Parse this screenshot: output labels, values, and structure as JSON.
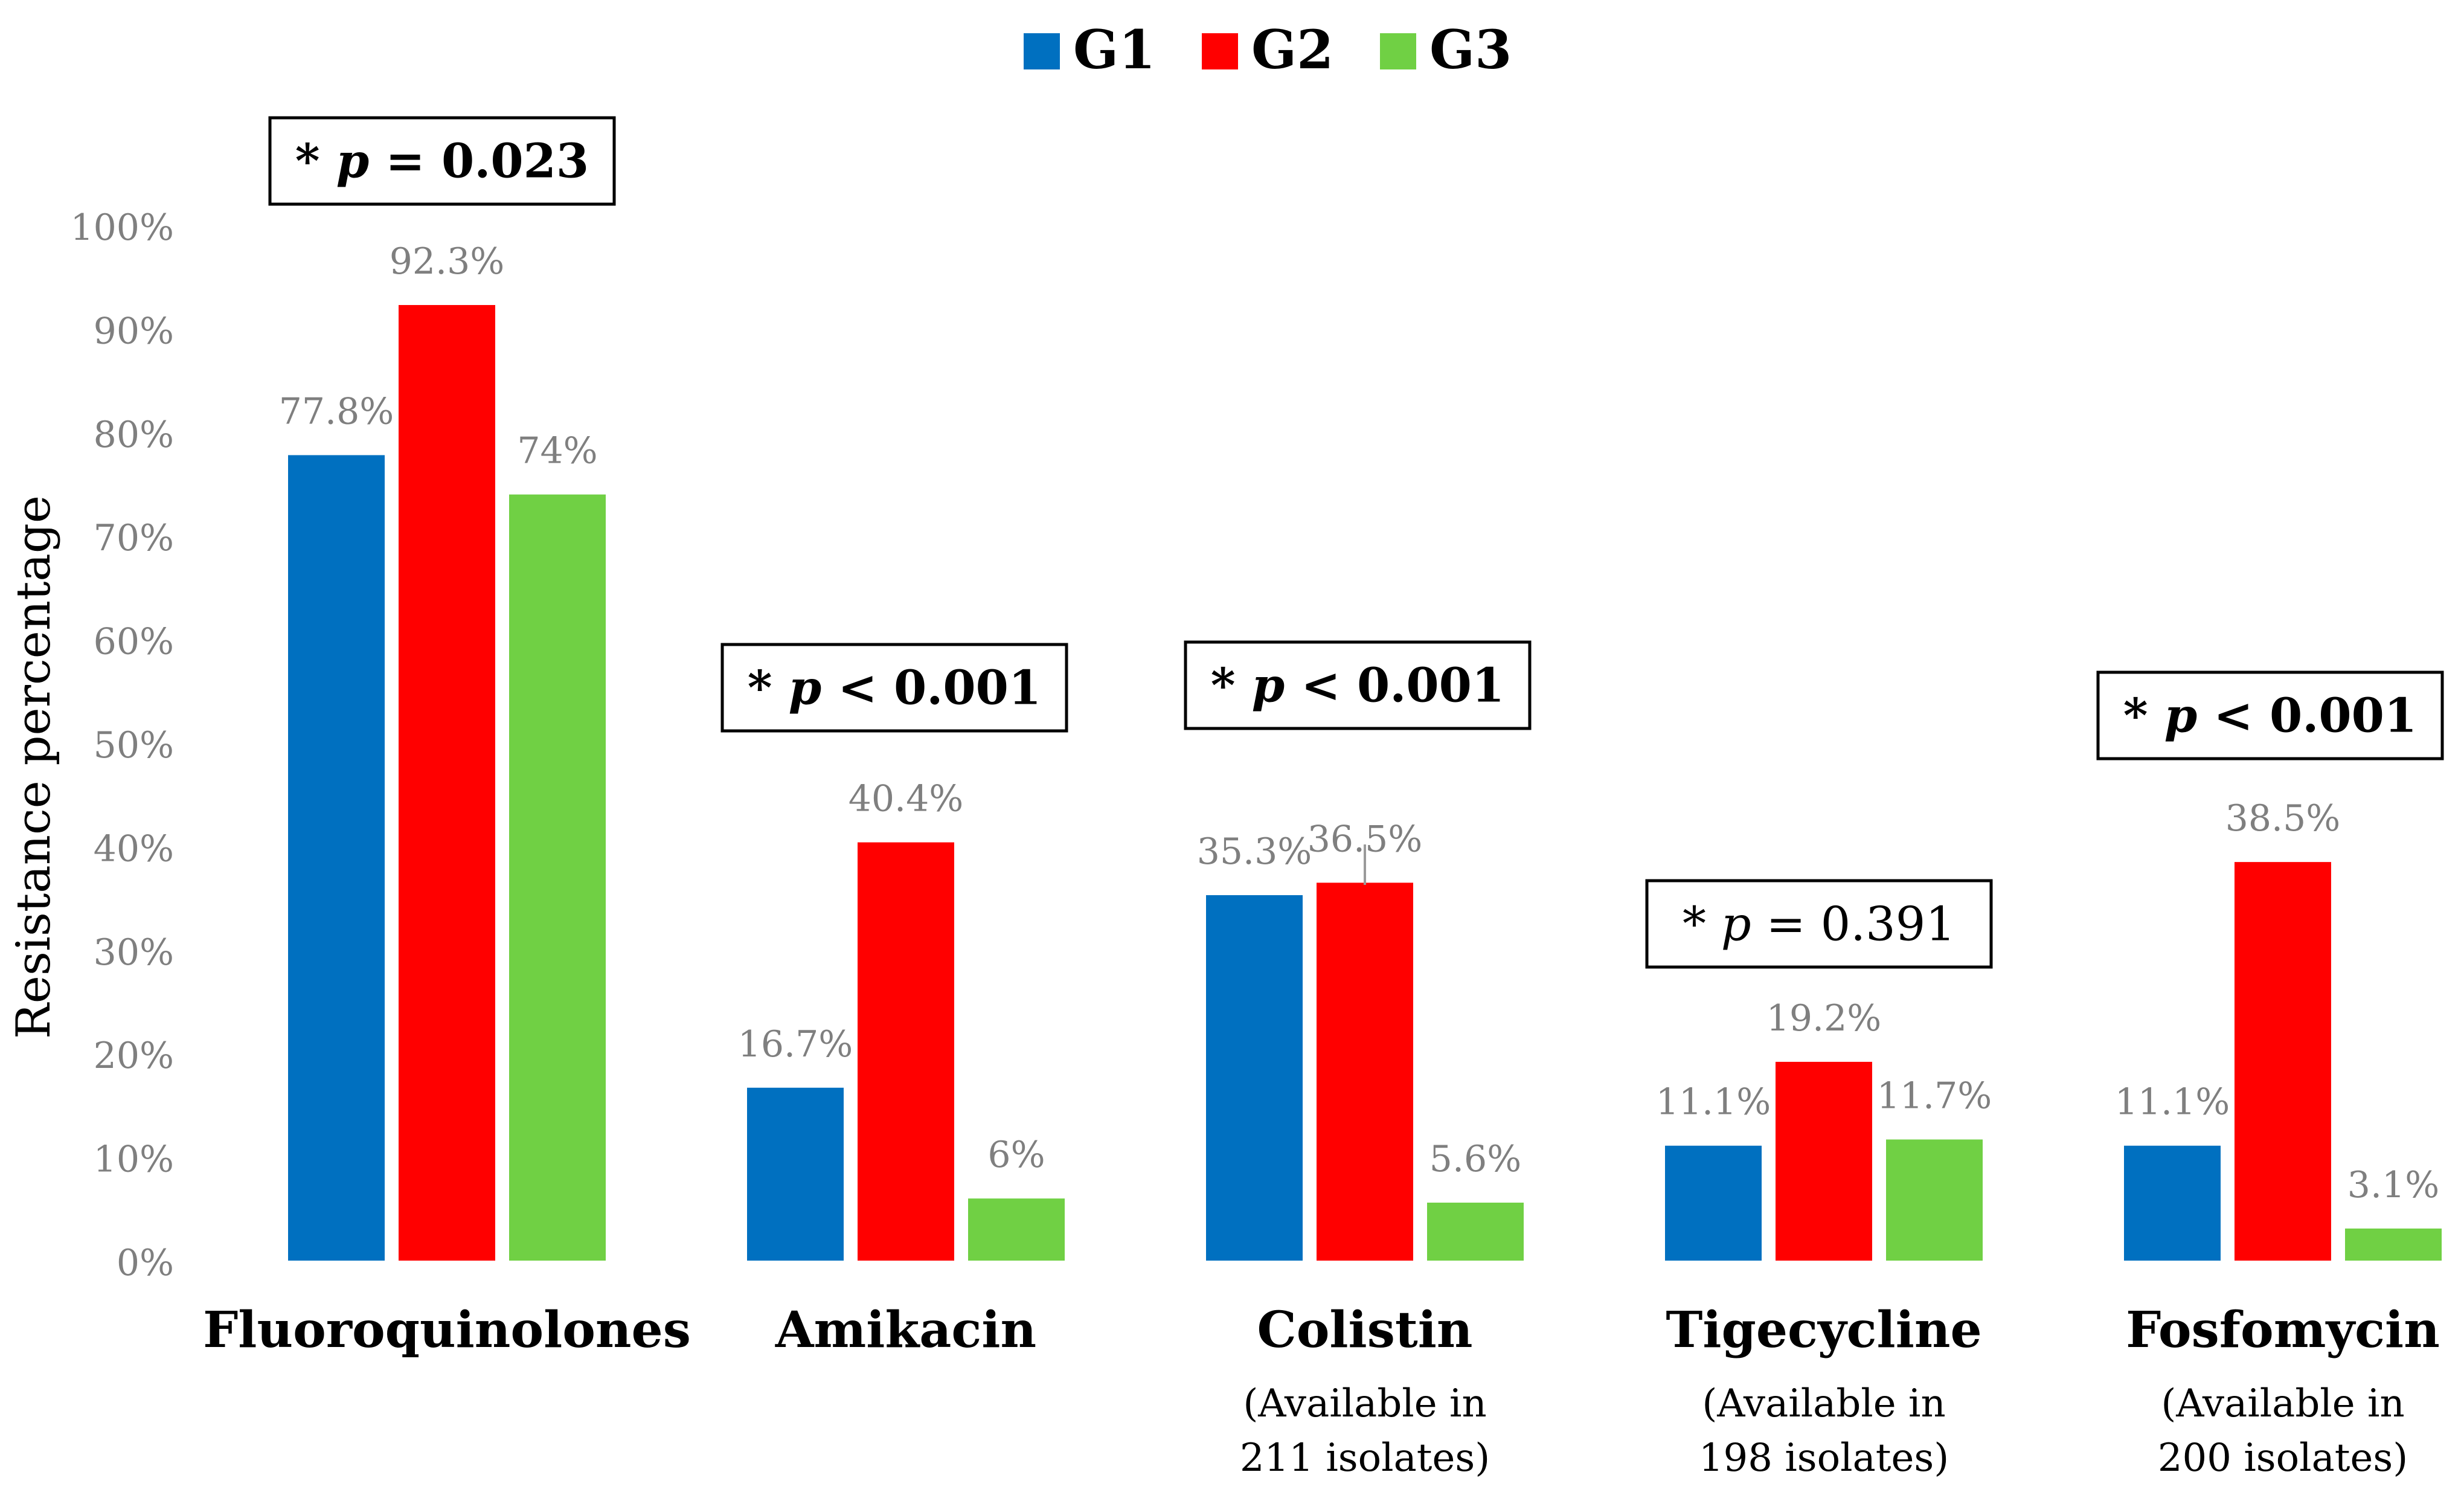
{
  "chart_data": {
    "type": "bar",
    "title": "",
    "xlabel": "",
    "ylabel": "Resistance percentage",
    "ylim": [
      0,
      100
    ],
    "yticks": [
      0,
      10,
      20,
      30,
      40,
      50,
      60,
      70,
      80,
      90,
      100
    ],
    "ytick_labels": [
      "0%",
      "10%",
      "20%",
      "30%",
      "40%",
      "50%",
      "60%",
      "70%",
      "80%",
      "90%",
      "100%"
    ],
    "grid": false,
    "legend_position": "top-center",
    "categories": [
      "Fluoroquinolones",
      "Amikacin",
      "Colistin",
      "Tigecycline",
      "Fosfomycin"
    ],
    "category_notes": [
      [],
      [],
      [
        "(Available in",
        "211 isolates)"
      ],
      [
        "(Available in",
        "198 isolates)"
      ],
      [
        "(Available in",
        "200 isolates)"
      ]
    ],
    "series": [
      {
        "name": "G1",
        "color": "#0070C0",
        "values": [
          77.8,
          16.7,
          35.3,
          11.1,
          11.1
        ],
        "labels": [
          "77.8%",
          "16.7%",
          "35.3%",
          "11.1%",
          "11.1%"
        ]
      },
      {
        "name": "G2",
        "color": "#FF0000",
        "values": [
          92.3,
          40.4,
          36.5,
          19.2,
          38.5
        ],
        "labels": [
          "92.3%",
          "40.4%",
          "36.5%",
          "19.2%",
          "38.5%"
        ]
      },
      {
        "name": "G3",
        "color": "#70D044",
        "values": [
          74,
          6,
          5.6,
          11.7,
          3.1
        ],
        "labels": [
          "74%",
          "6%",
          "5.6%",
          "11.7%",
          "3.1%"
        ]
      }
    ],
    "annotations": [
      {
        "prefix": "* ",
        "var": "p",
        "rest": " = 0.023",
        "category": "Fluoroquinolones",
        "bold": true
      },
      {
        "prefix": "* ",
        "var": "p",
        "rest": " < 0.001",
        "category": "Amikacin",
        "bold": true
      },
      {
        "prefix": "* ",
        "var": "p",
        "rest": " < 0.001",
        "category": "Colistin",
        "bold": true
      },
      {
        "prefix": "* ",
        "var": "p",
        "rest": " = 0.391",
        "category": "Tigecycline",
        "bold": false
      },
      {
        "prefix": "* ",
        "var": "p",
        "rest": " < 0.001",
        "category": "Fosfomycin",
        "bold": true
      }
    ]
  },
  "colors": {
    "axis_text": "#7F7F7F",
    "label_text": "#000000"
  }
}
